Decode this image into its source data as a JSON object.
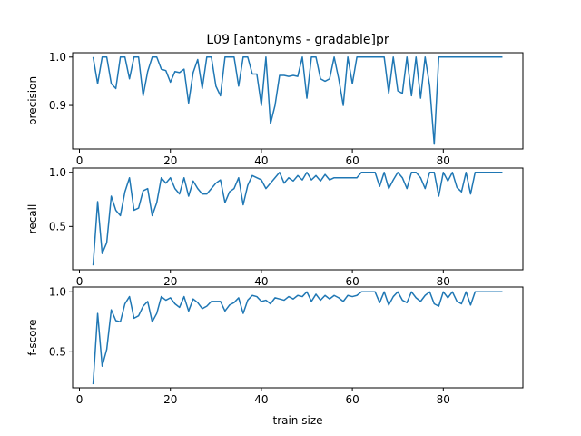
{
  "chart_data": {
    "type": "line",
    "title": "L09 [antonyms - gradable]pr",
    "xlabel": "train size",
    "x_start": 3,
    "x_end": 93,
    "xlim": [
      -1.5,
      97.5
    ],
    "xticks": [
      0,
      20,
      40,
      60,
      80
    ],
    "line_color": "#1f77b4",
    "panels": [
      {
        "ylabel": "precision",
        "ylim": [
          0.81,
          1.009
        ],
        "yticks": [
          0.9,
          1.0
        ],
        "ytick_labels": [
          "0.9",
          "1.0"
        ],
        "values": [
          1.0,
          0.945,
          1.0,
          1.0,
          0.945,
          0.935,
          1.0,
          1.0,
          0.955,
          1.0,
          1.0,
          0.92,
          0.97,
          1.0,
          1.0,
          0.975,
          0.972,
          0.948,
          0.97,
          0.968,
          0.975,
          0.905,
          0.968,
          0.995,
          0.935,
          1.0,
          1.0,
          0.94,
          0.92,
          1.0,
          1.0,
          1.0,
          0.94,
          1.0,
          1.0,
          0.965,
          0.965,
          0.9,
          1.0,
          0.862,
          0.9,
          0.962,
          0.962,
          0.96,
          0.962,
          0.96,
          1.0,
          0.915,
          1.0,
          1.0,
          0.955,
          0.95,
          0.955,
          1.0,
          0.955,
          0.9,
          1.0,
          0.945,
          1.0,
          1.0,
          1.0,
          1.0,
          1.0,
          1.0,
          1.0,
          0.925,
          1.0,
          0.93,
          0.925,
          1.0,
          0.92,
          1.0,
          0.915,
          1.0,
          0.94,
          0.82,
          1.0,
          1.0,
          1.0,
          1.0,
          1.0,
          1.0,
          1.0,
          1.0,
          1.0,
          1.0,
          1.0,
          1.0,
          1.0,
          1.0,
          1.0
        ]
      },
      {
        "ylabel": "recall",
        "ylim": [
          0.1,
          1.04
        ],
        "yticks": [
          0.5,
          1.0
        ],
        "ytick_labels": [
          "0.5",
          "1.0"
        ],
        "values": [
          0.14,
          0.73,
          0.25,
          0.35,
          0.78,
          0.65,
          0.6,
          0.82,
          0.95,
          0.65,
          0.67,
          0.83,
          0.85,
          0.6,
          0.72,
          0.95,
          0.9,
          0.95,
          0.85,
          0.8,
          0.95,
          0.78,
          0.92,
          0.85,
          0.8,
          0.8,
          0.85,
          0.9,
          0.93,
          0.72,
          0.82,
          0.85,
          0.95,
          0.7,
          0.88,
          0.97,
          0.95,
          0.93,
          0.85,
          0.9,
          0.95,
          1.0,
          0.9,
          0.95,
          0.92,
          0.97,
          0.93,
          1.0,
          0.93,
          0.97,
          0.92,
          0.98,
          0.93,
          0.95,
          0.95,
          0.95,
          0.95,
          0.95,
          0.95,
          1.0,
          1.0,
          1.0,
          1.0,
          0.87,
          1.0,
          0.85,
          0.93,
          1.0,
          0.95,
          0.85,
          1.0,
          1.0,
          0.95,
          0.85,
          1.0,
          1.0,
          0.78,
          1.0,
          0.92,
          1.0,
          0.86,
          0.82,
          1.0,
          0.8,
          1.0,
          1.0,
          1.0,
          1.0,
          1.0,
          1.0,
          1.0
        ]
      },
      {
        "ylabel": "f-score",
        "ylim": [
          0.2,
          1.04
        ],
        "yticks": [
          0.5,
          1.0
        ],
        "ytick_labels": [
          "0.5",
          "1.0"
        ],
        "values": [
          0.23,
          0.82,
          0.38,
          0.52,
          0.85,
          0.76,
          0.75,
          0.9,
          0.96,
          0.78,
          0.8,
          0.88,
          0.92,
          0.75,
          0.82,
          0.96,
          0.93,
          0.95,
          0.9,
          0.87,
          0.96,
          0.84,
          0.94,
          0.91,
          0.86,
          0.88,
          0.92,
          0.92,
          0.92,
          0.84,
          0.89,
          0.91,
          0.95,
          0.82,
          0.93,
          0.97,
          0.96,
          0.92,
          0.93,
          0.9,
          0.95,
          0.94,
          0.93,
          0.96,
          0.94,
          0.97,
          0.96,
          1.0,
          0.92,
          0.98,
          0.93,
          0.97,
          0.94,
          0.97,
          0.95,
          0.92,
          0.97,
          0.96,
          0.97,
          1.0,
          1.0,
          1.0,
          1.0,
          0.91,
          1.0,
          0.89,
          0.96,
          1.0,
          0.93,
          0.91,
          1.0,
          0.95,
          0.92,
          0.97,
          1.0,
          0.9,
          0.88,
          1.0,
          0.95,
          1.0,
          0.92,
          0.9,
          1.0,
          0.89,
          1.0,
          1.0,
          1.0,
          1.0,
          1.0,
          1.0,
          1.0
        ]
      }
    ]
  }
}
